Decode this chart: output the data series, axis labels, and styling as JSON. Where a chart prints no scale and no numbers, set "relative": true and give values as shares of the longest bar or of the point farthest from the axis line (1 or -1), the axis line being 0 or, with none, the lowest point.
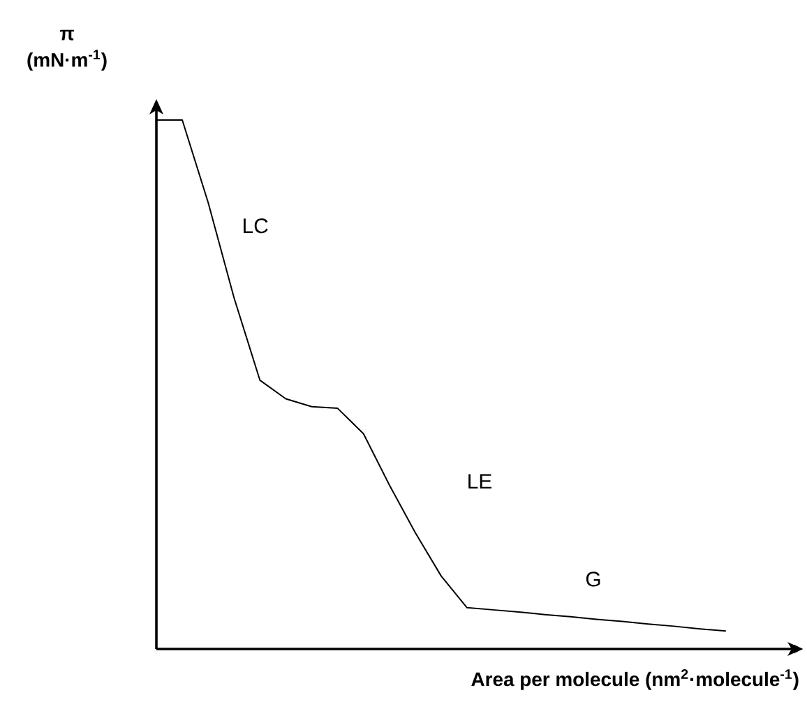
{
  "chart_data": {
    "type": "line",
    "relative": true,
    "color": "#000000",
    "xlabel": "**Area per molecule (nm$^{2}$·molecule$^{-1}$)**",
    "ylabel": "**π (mN·m$^{-1}$)**",
    "categories": [
      null,
      null,
      null,
      null,
      null,
      null,
      null,
      null,
      null,
      null,
      null,
      null,
      null,
      null,
      null,
      null,
      null,
      null,
      null,
      null,
      null,
      null,
      null
    ],
    "values": [
      1,
      1,
      0.844,
      0.664,
      0.508,
      0.473,
      0.458,
      0.455,
      0.407,
      0.31,
      0.22,
      0.138,
      0.078,
      0.074,
      0.07,
      0.065,
      0.061,
      0.056,
      0.052,
      0.047,
      0.043,
      0.038,
      0.034
    ],
    "annotations": [
      "LC",
      "LE",
      "G"
    ]
  }
}
